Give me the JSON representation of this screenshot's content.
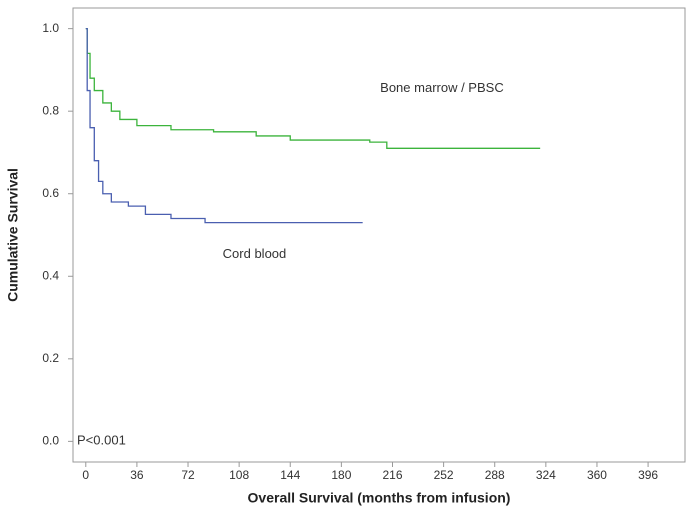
{
  "chart_data": {
    "type": "line",
    "step": true,
    "xlabel": "Overall Survival (months from infusion)",
    "ylabel": "Cumulative Survival",
    "annotation": "P<0.001",
    "x": [],
    "series": [
      {
        "name": "Bone marrow / PBSC",
        "color": "#3cb43c",
        "x": [
          0,
          1,
          3,
          6,
          12,
          18,
          24,
          36,
          60,
          90,
          120,
          144,
          200,
          212,
          320
        ],
        "values": [
          1.0,
          0.94,
          0.88,
          0.85,
          0.82,
          0.8,
          0.78,
          0.765,
          0.755,
          0.75,
          0.74,
          0.73,
          0.725,
          0.71,
          0.71
        ]
      },
      {
        "name": "Cord blood",
        "color": "#4a5fb0",
        "x": [
          0,
          1,
          3,
          6,
          9,
          12,
          18,
          30,
          42,
          60,
          84,
          195
        ],
        "values": [
          1.0,
          0.85,
          0.76,
          0.68,
          0.63,
          0.6,
          0.58,
          0.57,
          0.55,
          0.54,
          0.53,
          0.53
        ]
      }
    ],
    "xlim": [
      -9,
      422
    ],
    "ylim": [
      -0.05,
      1.05
    ],
    "xticks": [
      0,
      36,
      72,
      108,
      144,
      180,
      216,
      252,
      288,
      324,
      360,
      396
    ],
    "yticks": [
      {
        "value": 0,
        "label": "0.0"
      },
      {
        "value": 0.2,
        "label": "0.2"
      },
      {
        "value": 0.4,
        "label": "0.4"
      },
      {
        "value": 0.6,
        "label": "0.6"
      },
      {
        "value": 0.8,
        "label": "0.8"
      },
      {
        "value": 1,
        "label": "1.0"
      }
    ],
    "grid": false
  }
}
